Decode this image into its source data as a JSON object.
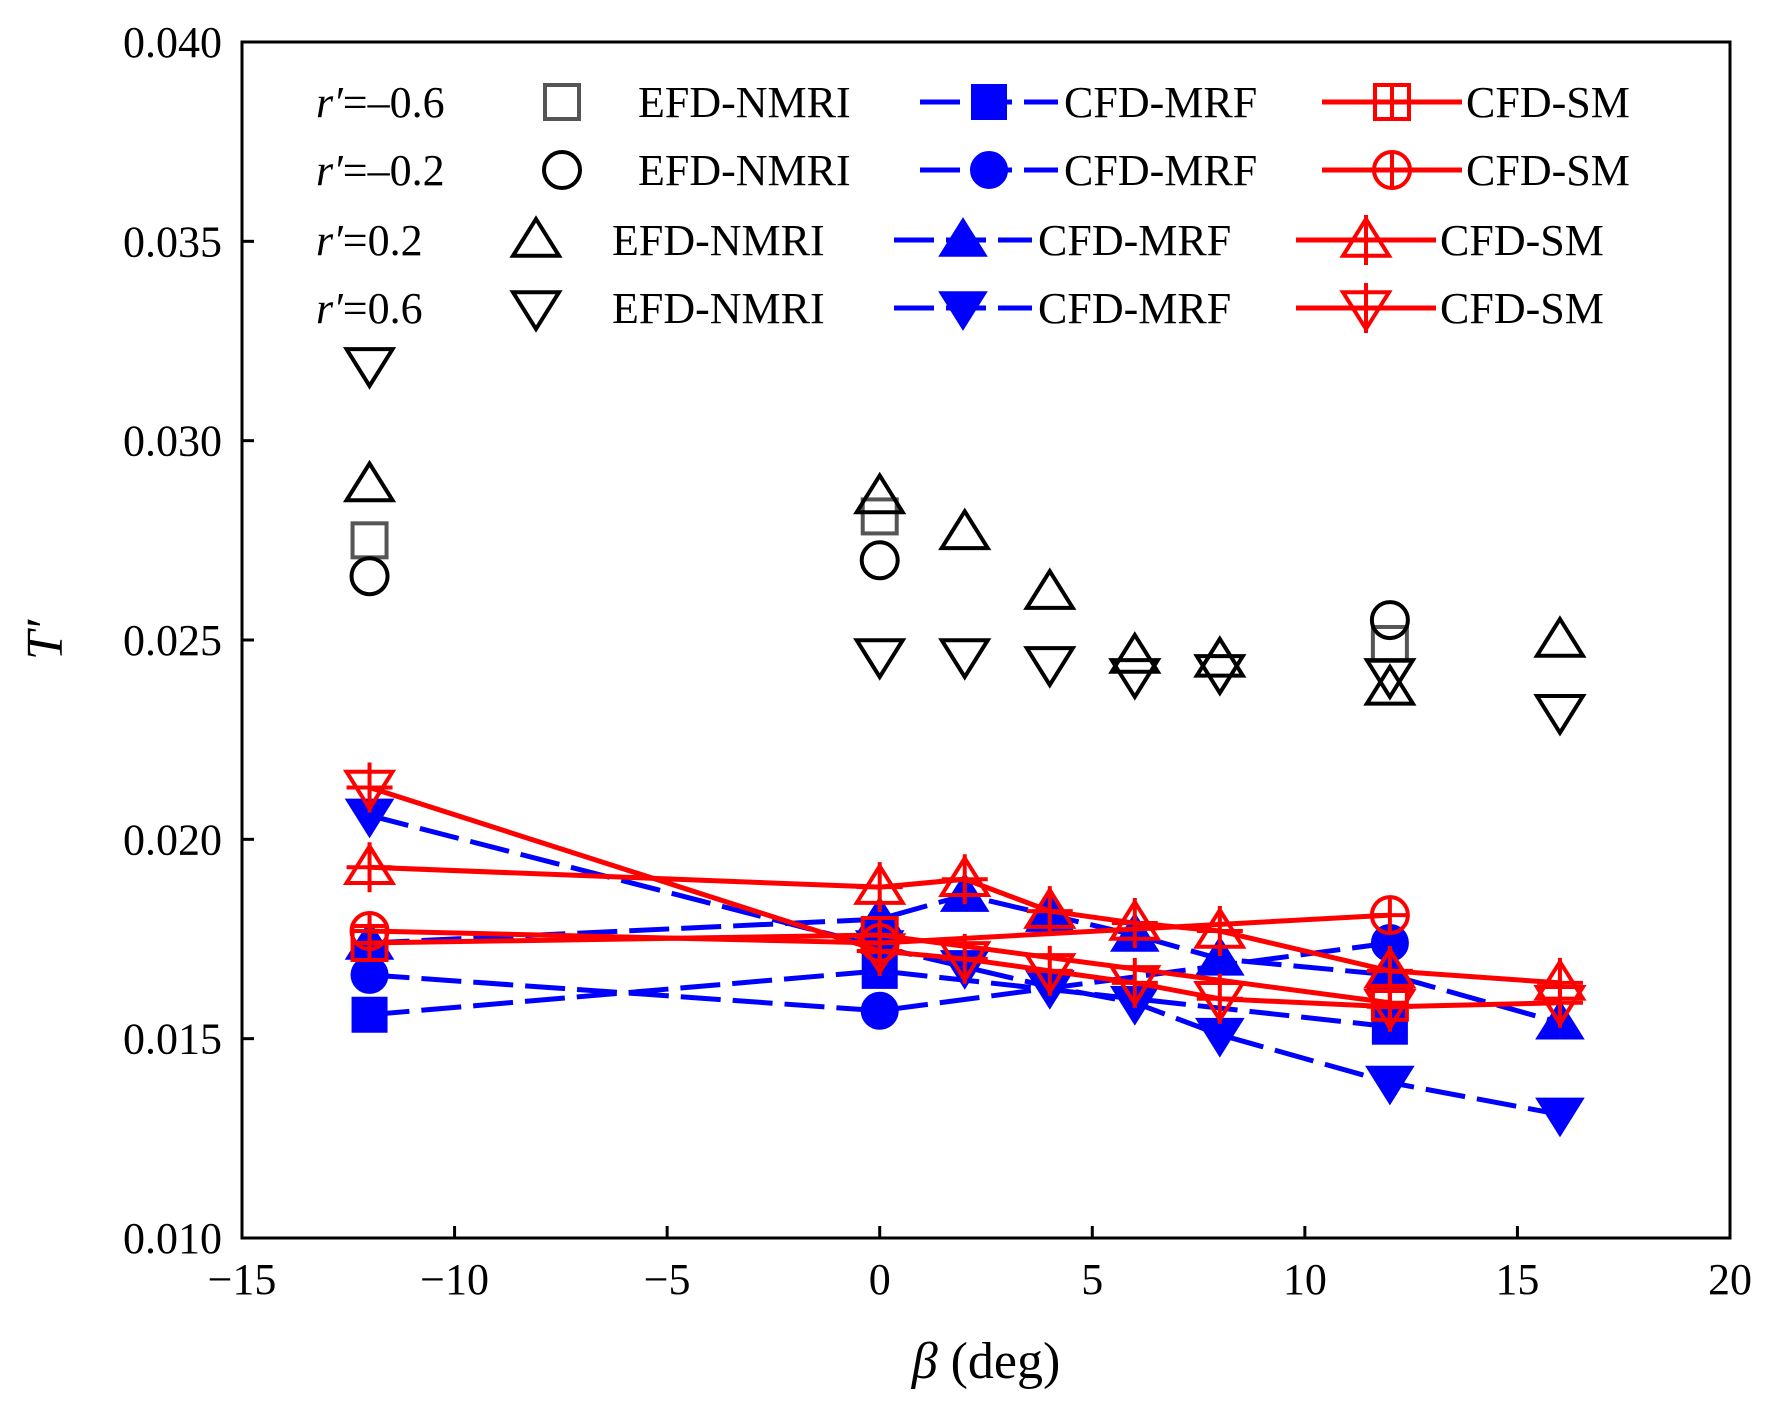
{
  "chart_data": {
    "type": "scatter",
    "title": "",
    "xlabel": "β (deg)",
    "xlabel_symbol": "β",
    "xlabel_unit": " (deg)",
    "ylabel": "T′",
    "xlim": [
      -15,
      20
    ],
    "ylim": [
      0.01,
      0.04
    ],
    "x_ticks": [
      -15,
      -10,
      -5,
      0,
      5,
      10,
      15,
      20
    ],
    "x_tick_labels": [
      "−15",
      "−10",
      "−5",
      "0",
      "5",
      "10",
      "15",
      "20"
    ],
    "y_ticks": [
      0.01,
      0.015,
      0.02,
      0.025,
      0.03,
      0.035,
      0.04
    ],
    "y_tick_labels": [
      "0.010",
      "0.015",
      "0.020",
      "0.025",
      "0.030",
      "0.035",
      "0.040"
    ],
    "grid": false,
    "legend_position": "top",
    "legend_rows": [
      {
        "r_label": "r′",
        "r_value": "=–0.6",
        "marker": "square",
        "efd": "EFD-NMRI",
        "mrf": "CFD-MRF",
        "sm": "CFD-SM"
      },
      {
        "r_label": "r′",
        "r_value": "=–0.2",
        "marker": "circle",
        "efd": "EFD-NMRI",
        "mrf": "CFD-MRF",
        "sm": "CFD-SM"
      },
      {
        "r_label": "r′",
        "r_value": "=0.2",
        "marker": "triangle-up",
        "efd": "EFD-NMRI",
        "mrf": "CFD-MRF",
        "sm": "CFD-SM"
      },
      {
        "r_label": "r′",
        "r_value": "=0.6",
        "marker": "triangle-down",
        "efd": "EFD-NMRI",
        "mrf": "CFD-MRF",
        "sm": "CFD-SM"
      }
    ],
    "series": [
      {
        "name": "EFD-NMRI r′=−0.6",
        "group": "efd",
        "marker": "square",
        "x": [
          -12,
          0,
          12
        ],
        "y": [
          0.0275,
          0.0281,
          0.0249
        ]
      },
      {
        "name": "EFD-NMRI r′=−0.2",
        "group": "efd",
        "marker": "circle",
        "x": [
          -12,
          0,
          12
        ],
        "y": [
          0.0266,
          0.027,
          0.0255
        ]
      },
      {
        "name": "EFD-NMRI r′=0.2",
        "group": "efd",
        "marker": "triangle-up",
        "x": [
          -12,
          0,
          2,
          4,
          6,
          8,
          12,
          16
        ],
        "y": [
          0.0289,
          0.0286,
          0.0277,
          0.0262,
          0.0246,
          0.0245,
          0.0238,
          0.025
        ]
      },
      {
        "name": "EFD-NMRI r′=0.6",
        "group": "efd",
        "marker": "triangle-down",
        "x": [
          -12,
          0,
          2,
          4,
          6,
          8,
          12,
          16
        ],
        "y": [
          0.0319,
          0.0246,
          0.0246,
          0.0244,
          0.0241,
          0.0242,
          0.0241,
          0.0232
        ]
      },
      {
        "name": "CFD-MRF r′=−0.6",
        "group": "mrf",
        "marker": "square",
        "x": [
          -12,
          0,
          12
        ],
        "y": [
          0.0156,
          0.0167,
          0.0153
        ]
      },
      {
        "name": "CFD-MRF r′=−0.2",
        "group": "mrf",
        "marker": "circle",
        "x": [
          -12,
          0,
          12
        ],
        "y": [
          0.0166,
          0.0157,
          0.0174
        ]
      },
      {
        "name": "CFD-MRF r′=0.2",
        "group": "mrf",
        "marker": "triangle-up",
        "x": [
          -12,
          0,
          2,
          4,
          6,
          8,
          12,
          16
        ],
        "y": [
          0.0174,
          0.018,
          0.0186,
          0.0181,
          0.0176,
          0.017,
          0.0166,
          0.0154
        ]
      },
      {
        "name": "CFD-MRF r′=0.6",
        "group": "mrf",
        "marker": "triangle-down",
        "x": [
          -12,
          0,
          2,
          4,
          6,
          8,
          12,
          16
        ],
        "y": [
          0.0206,
          0.0173,
          0.0168,
          0.0163,
          0.0159,
          0.0151,
          0.0139,
          0.0131
        ]
      },
      {
        "name": "CFD-SM r′=−0.6",
        "group": "sm",
        "marker": "square",
        "x": [
          -12,
          0,
          12
        ],
        "y": [
          0.0174,
          0.0176,
          0.0159
        ]
      },
      {
        "name": "CFD-SM r′=−0.2",
        "group": "sm",
        "marker": "circle",
        "x": [
          -12,
          0,
          12
        ],
        "y": [
          0.0177,
          0.0174,
          0.0181
        ]
      },
      {
        "name": "CFD-SM r′=0.2",
        "group": "sm",
        "marker": "triangle-up",
        "x": [
          -12,
          0,
          2,
          4,
          6,
          8,
          12,
          16
        ],
        "y": [
          0.0193,
          0.0188,
          0.019,
          0.0182,
          0.0179,
          0.0177,
          0.0167,
          0.0164
        ]
      },
      {
        "name": "CFD-SM r′=0.6",
        "group": "sm",
        "marker": "triangle-down",
        "x": [
          -12,
          0,
          2,
          4,
          6,
          8,
          12,
          16
        ],
        "y": [
          0.0213,
          0.0172,
          0.017,
          0.0167,
          0.0164,
          0.016,
          0.0158,
          0.0159
        ]
      }
    ]
  },
  "colors": {
    "efd": "#000000",
    "efd_square": "#555555",
    "mrf": "#0000ff",
    "sm": "#ff0000",
    "axis": "#000000"
  }
}
